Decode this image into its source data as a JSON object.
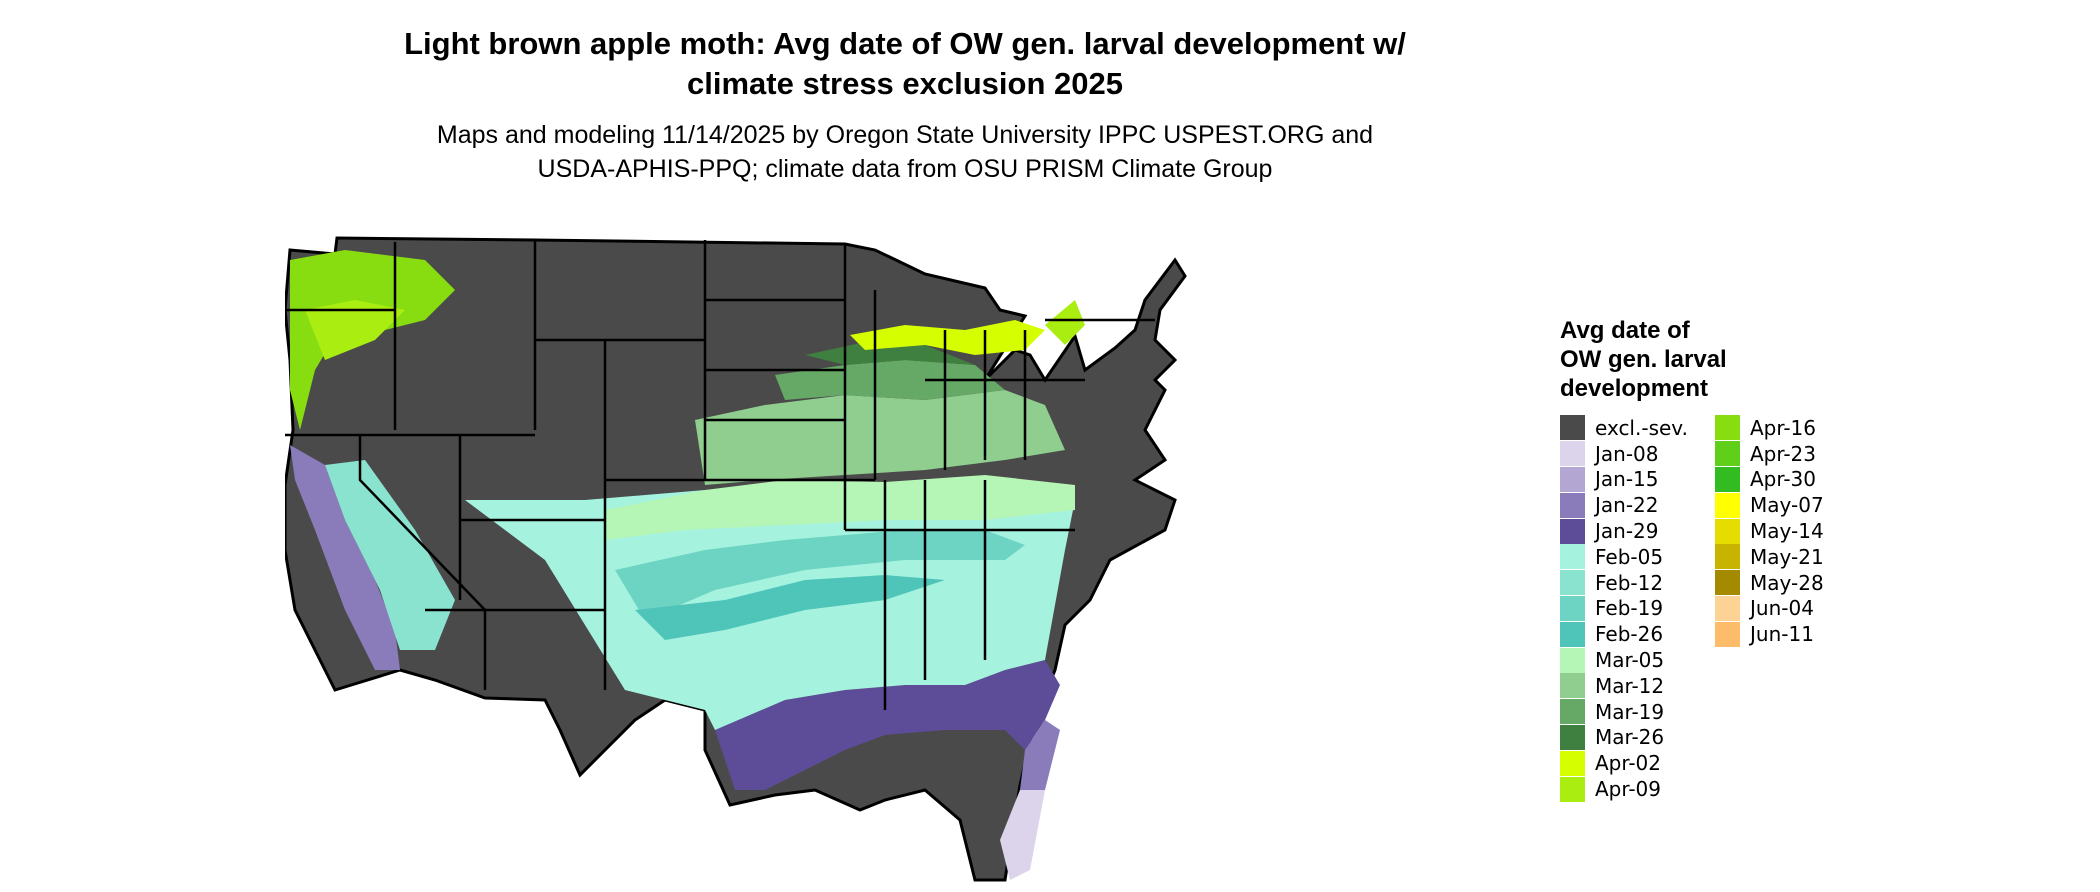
{
  "title": {
    "line1": "Light brown apple moth: Avg date of OW gen. larval development w/",
    "line2": "climate stress exclusion 2025"
  },
  "subtitle": {
    "line1": "Maps and modeling 11/14/2025 by Oregon State University IPPC USPEST.ORG and",
    "line2": "USDA-APHIS-PPQ; climate data from OSU PRISM Climate Group"
  },
  "legend": {
    "title_line1": "Avg date of",
    "title_line2": "OW gen. larval",
    "title_line3": "development",
    "items": [
      {
        "label": "excl.-sev.",
        "color": "#4a4a4a"
      },
      {
        "label": "Jan-08",
        "color": "#dcd4ea"
      },
      {
        "label": "Jan-15",
        "color": "#b3a6d2"
      },
      {
        "label": "Jan-22",
        "color": "#8a7cba"
      },
      {
        "label": "Jan-29",
        "color": "#5d4d98"
      },
      {
        "label": "Feb-05",
        "color": "#a5f3df"
      },
      {
        "label": "Feb-12",
        "color": "#8ae3cf"
      },
      {
        "label": "Feb-19",
        "color": "#6dd4c3"
      },
      {
        "label": "Feb-26",
        "color": "#4fc4b8"
      },
      {
        "label": "Mar-05",
        "color": "#b5f5b5"
      },
      {
        "label": "Mar-12",
        "color": "#8fce8f"
      },
      {
        "label": "Mar-19",
        "color": "#66a866"
      },
      {
        "label": "Mar-26",
        "color": "#3f7f3f"
      },
      {
        "label": "Apr-02",
        "color": "#d5ff00"
      },
      {
        "label": "Apr-09",
        "color": "#aaee11"
      },
      {
        "label": "Apr-16",
        "color": "#88dd11"
      },
      {
        "label": "Apr-23",
        "color": "#5fcf1a"
      },
      {
        "label": "Apr-30",
        "color": "#33bb22"
      },
      {
        "label": "May-07",
        "color": "#ffff00"
      },
      {
        "label": "May-14",
        "color": "#e5dd00"
      },
      {
        "label": "May-21",
        "color": "#c7b300"
      },
      {
        "label": "May-28",
        "color": "#a38a00"
      },
      {
        "label": "Jun-04",
        "color": "#fcd394"
      },
      {
        "label": "Jun-11",
        "color": "#fcbc6a"
      }
    ]
  }
}
